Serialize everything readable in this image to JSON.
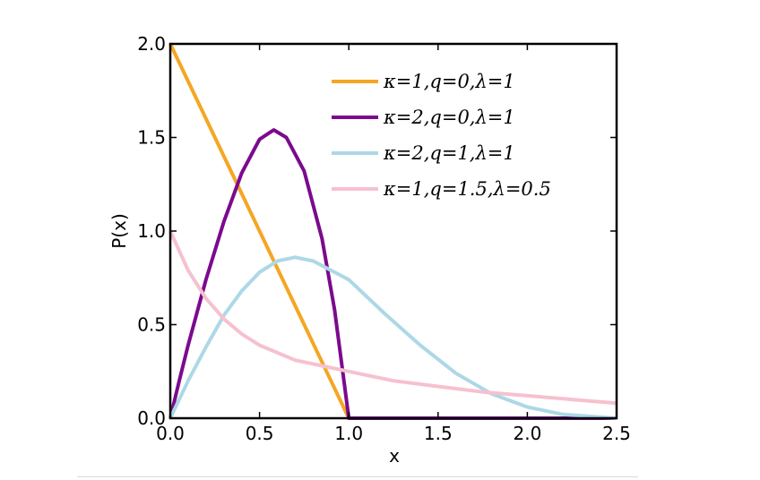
{
  "chart_data": {
    "type": "line",
    "title": "",
    "xlabel": "x",
    "ylabel": "P(x)",
    "xlim": [
      0.0,
      2.5
    ],
    "ylim": [
      0.0,
      2.0
    ],
    "xticks": [
      "0.0",
      "0.5",
      "1.0",
      "1.5",
      "2.0",
      "2.5"
    ],
    "yticks": [
      "0.0",
      "0.5",
      "1.0",
      "1.5",
      "2.0"
    ],
    "grid": false,
    "legend_position": "top-right",
    "series": [
      {
        "name": "κ=1,q=0,λ=1",
        "color": "#f5a623",
        "points": [
          [
            0,
            2.0
          ],
          [
            0.25,
            1.5
          ],
          [
            0.5,
            1.0
          ],
          [
            0.75,
            0.5
          ],
          [
            1.0,
            0.0
          ],
          [
            1.25,
            0.0
          ],
          [
            1.5,
            0.0
          ],
          [
            2.0,
            0.0
          ],
          [
            2.5,
            0.0
          ]
        ]
      },
      {
        "name": "κ=2,q=0,λ=1",
        "color": "#7b0a8e",
        "points": [
          [
            0,
            0.0
          ],
          [
            0.05,
            0.2
          ],
          [
            0.1,
            0.39
          ],
          [
            0.2,
            0.74
          ],
          [
            0.3,
            1.05
          ],
          [
            0.4,
            1.31
          ],
          [
            0.5,
            1.49
          ],
          [
            0.58,
            1.54
          ],
          [
            0.65,
            1.5
          ],
          [
            0.75,
            1.32
          ],
          [
            0.85,
            0.96
          ],
          [
            0.92,
            0.58
          ],
          [
            0.97,
            0.22
          ],
          [
            1.0,
            0.0
          ],
          [
            1.5,
            0.0
          ],
          [
            2.0,
            0.0
          ],
          [
            2.5,
            0.0
          ]
        ]
      },
      {
        "name": "κ=2,q=1,λ=1",
        "color": "#add8e6",
        "points": [
          [
            0,
            0.0
          ],
          [
            0.1,
            0.2
          ],
          [
            0.2,
            0.38
          ],
          [
            0.3,
            0.55
          ],
          [
            0.4,
            0.68
          ],
          [
            0.5,
            0.78
          ],
          [
            0.6,
            0.84
          ],
          [
            0.7,
            0.86
          ],
          [
            0.8,
            0.84
          ],
          [
            0.9,
            0.79
          ],
          [
            1.0,
            0.74
          ],
          [
            1.2,
            0.56
          ],
          [
            1.4,
            0.39
          ],
          [
            1.6,
            0.24
          ],
          [
            1.8,
            0.13
          ],
          [
            2.0,
            0.06
          ],
          [
            2.2,
            0.02
          ],
          [
            2.5,
            0.0
          ]
        ]
      },
      {
        "name": "κ=1,q=1.5,λ=0.5",
        "color": "#f6c1cf",
        "points": [
          [
            0,
            1.0
          ],
          [
            0.1,
            0.79
          ],
          [
            0.2,
            0.64
          ],
          [
            0.3,
            0.53
          ],
          [
            0.4,
            0.45
          ],
          [
            0.5,
            0.39
          ],
          [
            0.7,
            0.31
          ],
          [
            1.0,
            0.25
          ],
          [
            1.25,
            0.2
          ],
          [
            1.5,
            0.17
          ],
          [
            1.75,
            0.14
          ],
          [
            2.0,
            0.12
          ],
          [
            2.25,
            0.1
          ],
          [
            2.5,
            0.08
          ]
        ]
      }
    ]
  }
}
